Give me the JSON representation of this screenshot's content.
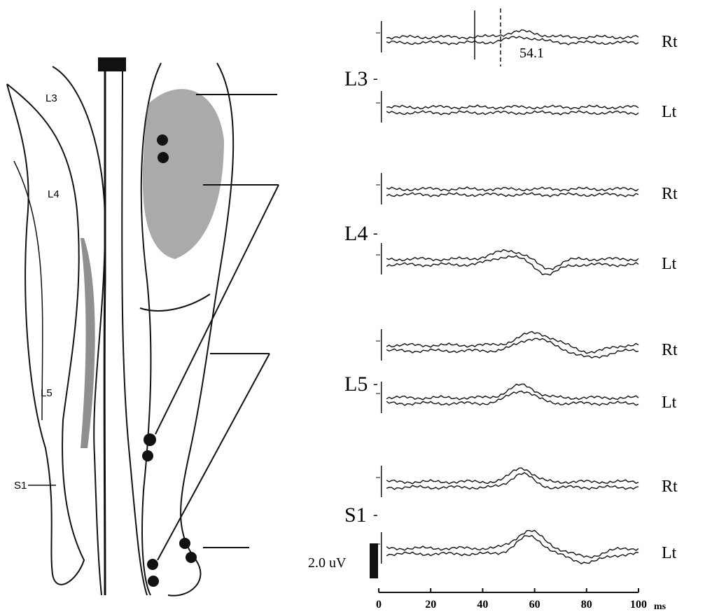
{
  "figure": {
    "leg_labels": [
      "L3",
      "L4",
      "L5",
      "S1"
    ],
    "levels": [
      {
        "label": "L3",
        "rows": [
          "Rt",
          "Lt"
        ]
      },
      {
        "label": "L4",
        "rows": [
          "Rt",
          "Lt"
        ]
      },
      {
        "label": "L5",
        "rows": [
          "Rt",
          "Lt"
        ]
      },
      {
        "label": "S1",
        "rows": [
          "Rt",
          "Lt"
        ]
      }
    ],
    "annotation": "54.1",
    "scale_label": "2.0 uV",
    "x_axis": {
      "xlim": [
        0,
        100
      ],
      "xticks": [
        0,
        20,
        40,
        60,
        80,
        100
      ],
      "unit": "ms"
    }
  }
}
